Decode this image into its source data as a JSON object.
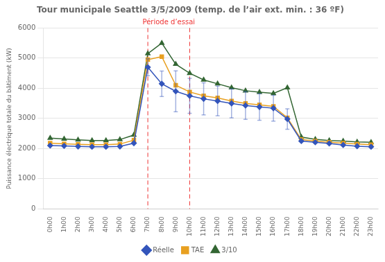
{
  "chart_data": {
    "type": "line",
    "title": "Tour municipale Seattle 3/5/2009 (temp. de l’air ext. min. : 36 ºF)",
    "ylabel": "Puissance électrique totale du bâtiment (kW)",
    "x": [
      0,
      1,
      2,
      3,
      4,
      5,
      6,
      7,
      8,
      9,
      10,
      11,
      12,
      13,
      14,
      15,
      16,
      17,
      18,
      19,
      20,
      21,
      22,
      23
    ],
    "xlim": [
      -0.5,
      23.5
    ],
    "xticks": [
      {
        "value": 0,
        "label": "0h00"
      },
      {
        "value": 1,
        "label": "1h00"
      },
      {
        "value": 2,
        "label": "2h00"
      },
      {
        "value": 3,
        "label": "3h00"
      },
      {
        "value": 4,
        "label": "4h00"
      },
      {
        "value": 5,
        "label": "5h00"
      },
      {
        "value": 6,
        "label": "6h00"
      },
      {
        "value": 7,
        "label": "7h00"
      },
      {
        "value": 8,
        "label": "8h00"
      },
      {
        "value": 9,
        "label": "9h00"
      },
      {
        "value": 10,
        "label": "10h00"
      },
      {
        "value": 11,
        "label": "11h00"
      },
      {
        "value": 12,
        "label": "12h00"
      },
      {
        "value": 13,
        "label": "13h00"
      },
      {
        "value": 14,
        "label": "14h00"
      },
      {
        "value": 15,
        "label": "15h00"
      },
      {
        "value": 16,
        "label": "16h00"
      },
      {
        "value": 17,
        "label": "17h00"
      },
      {
        "value": 18,
        "label": "18h00"
      },
      {
        "value": 19,
        "label": "19h00"
      },
      {
        "value": 20,
        "label": "20h00"
      },
      {
        "value": 21,
        "label": "21h00"
      },
      {
        "value": 22,
        "label": "22h00"
      },
      {
        "value": 23,
        "label": "23h00"
      }
    ],
    "ylim": [
      0,
      6000
    ],
    "yticks": [
      0,
      1000,
      2000,
      3000,
      4000,
      5000,
      6000
    ],
    "grid": "y",
    "legend": "bottom",
    "series": [
      {
        "name": "Réelle",
        "color": "#3355bb",
        "marker": "diamond",
        "line_style": "solid",
        "values": [
          2100,
          2090,
          2070,
          2060,
          2060,
          2070,
          2180,
          4700,
          4150,
          3900,
          3750,
          3650,
          3580,
          3500,
          3430,
          3380,
          3340,
          2980,
          2250,
          2210,
          2170,
          2120,
          2080,
          2060
        ],
        "error_low": [
          0,
          0,
          0,
          0,
          0,
          0,
          0,
          280,
          420,
          680,
          580,
          530,
          490,
          480,
          460,
          440,
          430,
          340,
          0,
          0,
          0,
          0,
          0,
          0
        ],
        "error_high": [
          0,
          0,
          0,
          0,
          0,
          0,
          0,
          280,
          420,
          680,
          580,
          530,
          490,
          480,
          460,
          440,
          430,
          340,
          0,
          0,
          0,
          0,
          0,
          0
        ]
      },
      {
        "name": "TAE",
        "color": "#e8a020",
        "marker": "square",
        "line_style": "solid",
        "values": [
          2180,
          2160,
          2140,
          2130,
          2130,
          2150,
          2280,
          4950,
          5050,
          4100,
          3880,
          3750,
          3680,
          3580,
          3500,
          3450,
          3400,
          3020,
          2300,
          2250,
          2210,
          2180,
          2150,
          2130
        ]
      },
      {
        "name": "3/10",
        "color": "#336633",
        "marker": "triangle",
        "line_style": "solid",
        "values": [
          2350,
          2320,
          2290,
          2270,
          2270,
          2300,
          2450,
          5150,
          5500,
          4800,
          4500,
          4280,
          4150,
          4020,
          3920,
          3870,
          3830,
          4020,
          2380,
          2310,
          2270,
          2250,
          2220,
          2210
        ]
      }
    ],
    "vlines": [
      {
        "x": 7,
        "color": "#ee3333",
        "line_style": "dashed"
      },
      {
        "x": 10,
        "color": "#ee3333",
        "line_style": "dashed"
      }
    ],
    "annotations": [
      {
        "text": "Période d’essai",
        "x": 8.5,
        "color": "#ee3333"
      }
    ]
  }
}
